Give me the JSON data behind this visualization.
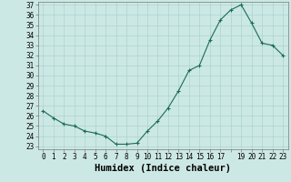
{
  "x": [
    0,
    1,
    2,
    3,
    4,
    5,
    6,
    7,
    8,
    9,
    10,
    11,
    12,
    13,
    14,
    15,
    16,
    17,
    18,
    19,
    20,
    21,
    22,
    23
  ],
  "y": [
    26.5,
    25.8,
    25.2,
    25.0,
    24.5,
    24.3,
    24.0,
    23.2,
    23.2,
    23.3,
    24.5,
    25.5,
    26.8,
    28.5,
    30.5,
    31.0,
    33.5,
    35.5,
    36.5,
    37.0,
    35.2,
    33.2,
    33.0,
    32.0
  ],
  "xlabel": "Humidex (Indice chaleur)",
  "ylim": [
    23,
    37
  ],
  "xlim": [
    -0.5,
    23.5
  ],
  "yticks": [
    23,
    24,
    25,
    26,
    27,
    28,
    29,
    30,
    31,
    32,
    33,
    34,
    35,
    36,
    37
  ],
  "xtick_labels": [
    "0",
    "1",
    "2",
    "3",
    "4",
    "5",
    "6",
    "7",
    "8",
    "9",
    "10",
    "11",
    "12",
    "13",
    "14",
    "15",
    "16",
    "17",
    "",
    "19",
    "20",
    "21",
    "22",
    "23"
  ],
  "line_color": "#1a6b5a",
  "bg_color": "#cce8e4",
  "grid_color": "#aad4cf",
  "tick_fontsize": 5.5,
  "label_fontsize": 7.5
}
